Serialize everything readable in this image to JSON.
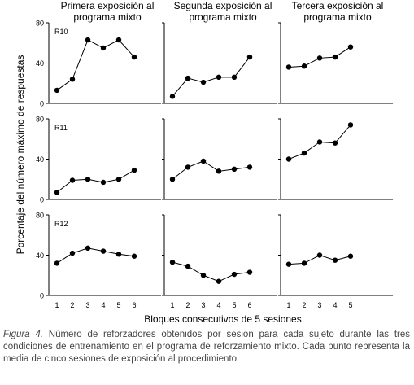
{
  "figure": {
    "column_titles": [
      [
        "Primera exposición al",
        "programa mixto"
      ],
      [
        "Segunda exposición al",
        "programa mixto"
      ],
      [
        "Tercera exposición al",
        "programa mixto"
      ]
    ],
    "row_labels": [
      "R10",
      "R11",
      "R12"
    ],
    "ylabel": "Porcentaje del número máximo de respuestas",
    "xlabel": "Bloques consecutivos de 5 sesiones",
    "caption_lead": "Figura 4.",
    "caption_text": " Número de reforzadores obtenidos por sesion para cada sujeto durante las tres condiciones de entrenamiento en el programa de reforzamiento mixto. Cada punto representa la media de cinco sesiones de exposición al procedimiento."
  },
  "chart_data": {
    "type": "line",
    "layout": "3x3 small multiples",
    "ylim": [
      0,
      80
    ],
    "yticks": [
      0,
      40,
      80
    ],
    "xticks": [
      1,
      2,
      3,
      4,
      5,
      6
    ],
    "grid": false,
    "panels": [
      {
        "row": "R10",
        "col": 1,
        "x": [
          1,
          2,
          3,
          4,
          5,
          6
        ],
        "y": [
          13,
          24,
          63,
          55,
          63,
          46
        ]
      },
      {
        "row": "R10",
        "col": 2,
        "x": [
          1,
          2,
          3,
          4,
          5,
          6
        ],
        "y": [
          7,
          25,
          21,
          26,
          26,
          46
        ]
      },
      {
        "row": "R10",
        "col": 3,
        "x": [
          1,
          2,
          3,
          4,
          5
        ],
        "y": [
          36,
          37,
          45,
          46,
          56
        ]
      },
      {
        "row": "R11",
        "col": 1,
        "x": [
          1,
          2,
          3,
          4,
          5,
          6
        ],
        "y": [
          7,
          19,
          20,
          17,
          20,
          29
        ]
      },
      {
        "row": "R11",
        "col": 2,
        "x": [
          1,
          2,
          3,
          4,
          5,
          6
        ],
        "y": [
          20,
          32,
          38,
          28,
          30,
          32
        ]
      },
      {
        "row": "R11",
        "col": 3,
        "x": [
          1,
          2,
          3,
          4,
          5
        ],
        "y": [
          40,
          46,
          57,
          56,
          74
        ]
      },
      {
        "row": "R12",
        "col": 1,
        "x": [
          1,
          2,
          3,
          4,
          5,
          6
        ],
        "y": [
          32,
          42,
          47,
          44,
          41,
          39
        ]
      },
      {
        "row": "R12",
        "col": 2,
        "x": [
          1,
          2,
          3,
          4,
          5,
          6
        ],
        "y": [
          33,
          29,
          20,
          14,
          21,
          23
        ]
      },
      {
        "row": "R12",
        "col": 3,
        "x": [
          1,
          2,
          3,
          4,
          5
        ],
        "y": [
          31,
          32,
          40,
          35,
          39
        ]
      }
    ]
  }
}
